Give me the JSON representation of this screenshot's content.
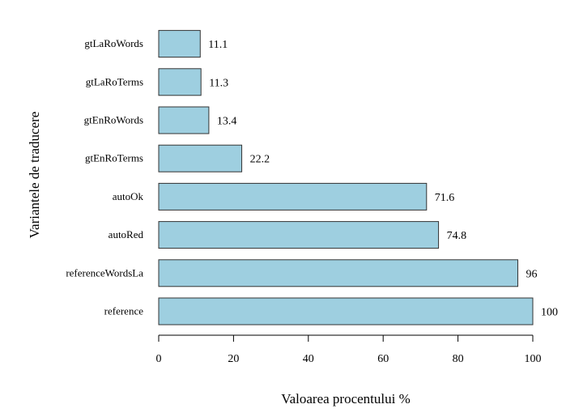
{
  "chart_data": {
    "type": "bar",
    "orientation": "horizontal",
    "categories": [
      "reference",
      "referenceWordsLa",
      "autoRed",
      "autoOk",
      "gtEnRoTerms",
      "gtEnRoWords",
      "gtLaRoTerms",
      "gtLaRoWords"
    ],
    "values": [
      100,
      96,
      74.8,
      71.6,
      22.2,
      13.4,
      11.3,
      11.1
    ],
    "value_labels": [
      "100",
      "96",
      "74.8",
      "71.6",
      "22.2",
      "13.4",
      "11.3",
      "11.1"
    ],
    "xlabel": "Valoarea procentului %",
    "ylabel": "Variantele de traducere",
    "xlim": [
      0,
      100
    ],
    "xticks": [
      0,
      20,
      40,
      60,
      80,
      100
    ],
    "bar_color": "#9ecfe0",
    "grid": false,
    "legend": "none"
  }
}
